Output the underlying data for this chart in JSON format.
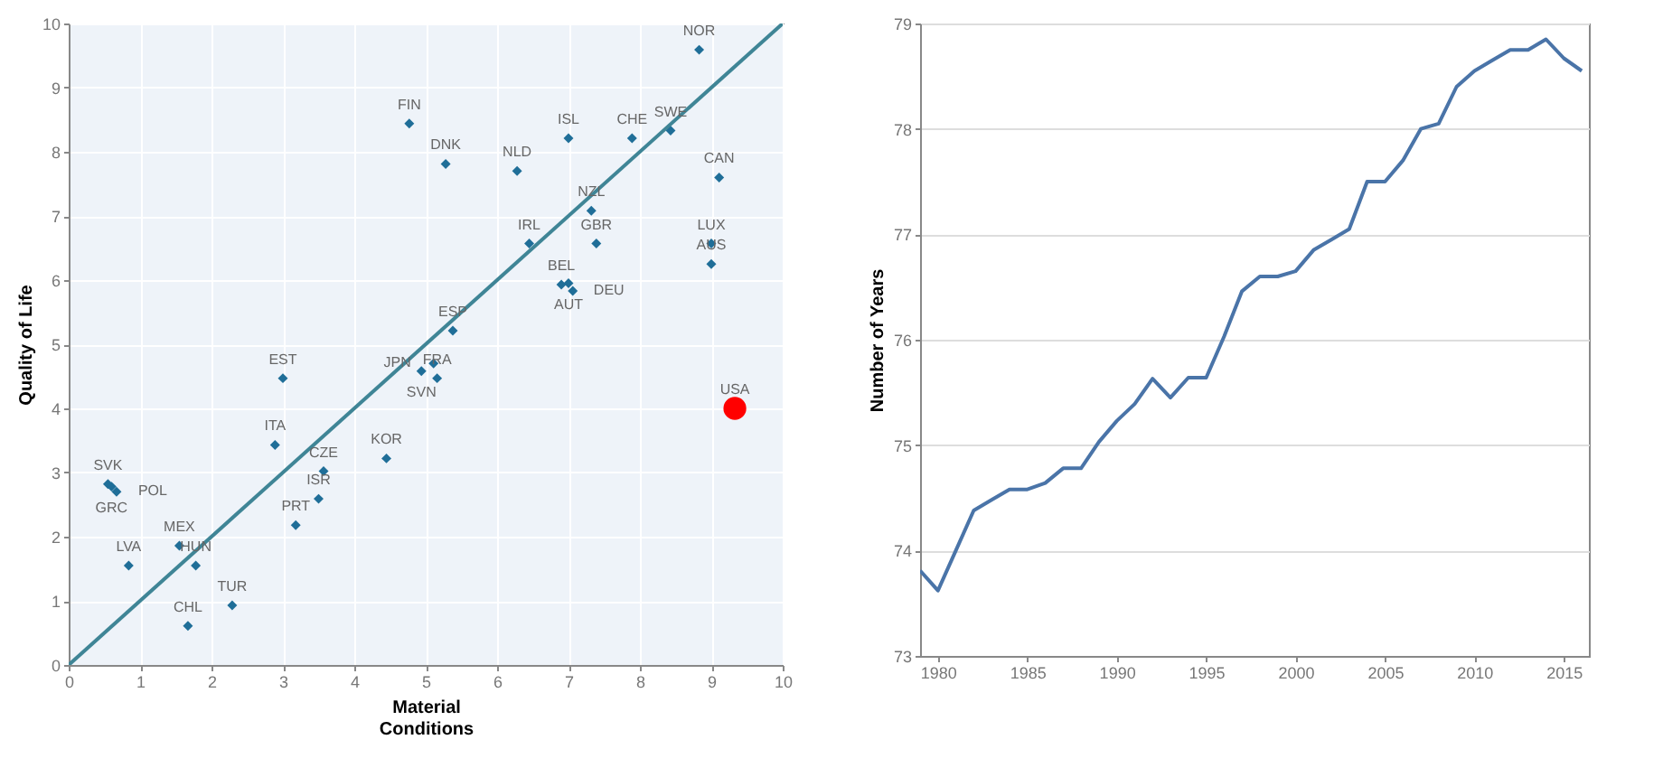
{
  "chart_data": [
    {
      "type": "scatter",
      "xlabel": "Material Conditions",
      "ylabel": "Quality of Life",
      "xlim": [
        0,
        10
      ],
      "ylim": [
        0,
        10
      ],
      "xticks": [
        0,
        1,
        2,
        3,
        4,
        5,
        6,
        7,
        8,
        9,
        10
      ],
      "yticks": [
        0,
        1,
        2,
        3,
        4,
        5,
        6,
        7,
        8,
        9,
        10
      ],
      "grid": true,
      "series": [
        {
          "type": "scatter",
          "marker": "diamond",
          "color": "#1f6e98",
          "x": [
            0.55,
            0.6,
            0.67,
            0.84,
            1.55,
            1.78,
            1.67,
            2.29,
            3.0,
            2.89,
            3.18,
            3.5,
            3.57,
            4.45,
            5.16,
            4.94,
            5.11,
            5.38,
            4.77,
            5.28,
            6.28,
            7.0,
            7.89,
            8.43,
            8.83,
            9.11,
            7.32,
            6.45,
            7.39,
            9.0,
            9.0,
            6.9,
            7.0,
            7.06
          ],
          "values": [
            2.82,
            2.78,
            2.7,
            1.55,
            1.86,
            1.55,
            0.61,
            0.93,
            4.47,
            3.43,
            2.18,
            2.59,
            3.02,
            3.22,
            4.47,
            4.58,
            4.7,
            5.21,
            8.44,
            7.81,
            7.7,
            8.21,
            8.21,
            8.33,
            9.59,
            7.6,
            7.08,
            6.57,
            6.57,
            6.57,
            6.25,
            5.93,
            5.95,
            5.83
          ]
        },
        {
          "type": "scatter",
          "marker": "circle",
          "color": "#ff0000",
          "x": [
            9.33
          ],
          "values": [
            4.0
          ]
        },
        {
          "type": "line",
          "color": "#3f8596",
          "x": [
            0,
            10
          ],
          "values": [
            0,
            10
          ]
        }
      ],
      "annotations": [
        {
          "text": "SVK",
          "x": 0.55,
          "y": 2.82
        },
        {
          "text": "GRC",
          "x": 0.6,
          "y": 2.78
        },
        {
          "text": "POL",
          "x": 0.67,
          "y": 2.7
        },
        {
          "text": "LVA",
          "x": 0.84,
          "y": 1.55
        },
        {
          "text": "MEX",
          "x": 1.55,
          "y": 1.86
        },
        {
          "text": "HUN",
          "x": 1.78,
          "y": 1.55
        },
        {
          "text": "CHL",
          "x": 1.67,
          "y": 0.61
        },
        {
          "text": "TUR",
          "x": 2.29,
          "y": 0.93
        },
        {
          "text": "EST",
          "x": 3.0,
          "y": 4.47
        },
        {
          "text": "ITA",
          "x": 2.89,
          "y": 3.43
        },
        {
          "text": "PRT",
          "x": 3.18,
          "y": 2.18
        },
        {
          "text": "ISR",
          "x": 3.5,
          "y": 2.59
        },
        {
          "text": "CZE",
          "x": 3.57,
          "y": 3.02
        },
        {
          "text": "KOR",
          "x": 4.45,
          "y": 3.22
        },
        {
          "text": "FRA",
          "x": 5.16,
          "y": 4.47
        },
        {
          "text": "SVN",
          "x": 4.94,
          "y": 4.58
        },
        {
          "text": "JPN",
          "x": 5.11,
          "y": 4.7
        },
        {
          "text": "ESP",
          "x": 5.38,
          "y": 5.21
        },
        {
          "text": "FIN",
          "x": 4.77,
          "y": 8.44
        },
        {
          "text": "DNK",
          "x": 5.28,
          "y": 7.81
        },
        {
          "text": "NLD",
          "x": 6.28,
          "y": 7.7
        },
        {
          "text": "ISL",
          "x": 7.0,
          "y": 8.21
        },
        {
          "text": "CHE",
          "x": 7.89,
          "y": 8.21
        },
        {
          "text": "SWE",
          "x": 8.43,
          "y": 8.33
        },
        {
          "text": "NOR",
          "x": 8.83,
          "y": 9.59
        },
        {
          "text": "CAN",
          "x": 9.11,
          "y": 7.6
        },
        {
          "text": "NZL",
          "x": 7.32,
          "y": 7.08
        },
        {
          "text": "IRL",
          "x": 6.45,
          "y": 6.57
        },
        {
          "text": "GBR",
          "x": 7.39,
          "y": 6.57
        },
        {
          "text": "LUX",
          "x": 9.0,
          "y": 6.57
        },
        {
          "text": "AUS",
          "x": 9.0,
          "y": 6.25
        },
        {
          "text": "BEL",
          "x": 6.9,
          "y": 5.93
        },
        {
          "text": "AUT",
          "x": 7.0,
          "y": 5.95
        },
        {
          "text": "DEU",
          "x": 7.06,
          "y": 5.83
        },
        {
          "text": "USA",
          "x": 9.33,
          "y": 4.0
        }
      ]
    },
    {
      "type": "line",
      "ylabel": "Number of Years",
      "xlim": [
        1979,
        2016.4
      ],
      "ylim": [
        73,
        79
      ],
      "xticks": [
        1980,
        1985,
        1990,
        1995,
        2000,
        2005,
        2010,
        2015
      ],
      "yticks": [
        73,
        74,
        75,
        76,
        77,
        78,
        79
      ],
      "grid": "y",
      "series": [
        {
          "color": "#4a74a8",
          "x": [
            1979,
            1980,
            1981,
            1982,
            1983,
            1984,
            1985,
            1986,
            1987,
            1988,
            1989,
            1990,
            1991,
            1992,
            1993,
            1994,
            1995,
            1996,
            1997,
            1998,
            1999,
            2000,
            2001,
            2002,
            2003,
            2004,
            2005,
            2006,
            2007,
            2008,
            2009,
            2010,
            2011,
            2012,
            2013,
            2014,
            2015,
            2016
          ],
          "values": [
            73.81,
            73.62,
            74.0,
            74.38,
            74.48,
            74.58,
            74.58,
            74.64,
            74.78,
            74.78,
            75.03,
            75.23,
            75.39,
            75.63,
            75.45,
            75.64,
            75.64,
            76.03,
            76.46,
            76.6,
            76.6,
            76.65,
            76.85,
            76.95,
            77.05,
            77.5,
            77.5,
            77.7,
            78.0,
            78.05,
            78.4,
            78.55,
            78.65,
            78.75,
            78.75,
            78.85,
            78.67,
            78.55
          ]
        }
      ]
    }
  ]
}
